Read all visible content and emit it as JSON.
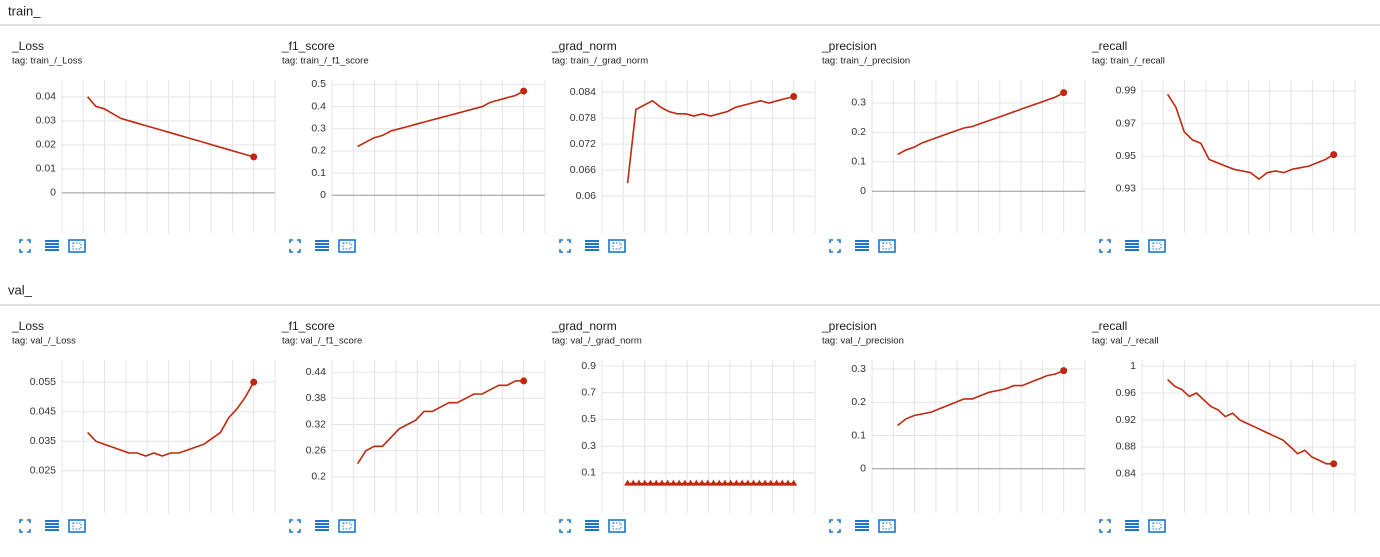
{
  "sections": [
    "train_",
    "val_"
  ],
  "chart_data": [
    {
      "type": "line",
      "title": "_Loss",
      "subtitle": "tag: train_/_Loss",
      "color": "#c0280f",
      "grid": true,
      "ylim": [
        -0.0167,
        0.047
      ],
      "yticks": [
        0,
        0.01,
        0.02,
        0.03,
        0.04
      ],
      "values": [
        0.04,
        0.036,
        0.035,
        0.033,
        0.031,
        0.03,
        0.029,
        0.028,
        0.027,
        0.026,
        0.025,
        0.024,
        0.023,
        0.022,
        0.021,
        0.02,
        0.019,
        0.018,
        0.017,
        0.016,
        0.015
      ]
    },
    {
      "type": "line",
      "title": "_f1_score",
      "subtitle": "tag: train_/_f1_score",
      "color": "#c0280f",
      "grid": true,
      "ylim": [
        -0.17,
        0.52
      ],
      "yticks": [
        0,
        0.1,
        0.2,
        0.3,
        0.4,
        0.5
      ],
      "values": [
        0.22,
        0.24,
        0.26,
        0.27,
        0.29,
        0.3,
        0.31,
        0.32,
        0.33,
        0.34,
        0.35,
        0.36,
        0.37,
        0.38,
        0.39,
        0.4,
        0.42,
        0.43,
        0.44,
        0.45,
        0.47
      ]
    },
    {
      "type": "line",
      "title": "_grad_norm",
      "subtitle": "tag: train_/_grad_norm",
      "color": "#c0280f",
      "grid": true,
      "ylim": [
        0.0515,
        0.0868
      ],
      "yticks": [
        0.06,
        0.066,
        0.072,
        0.078,
        0.084
      ],
      "values": [
        0.063,
        0.08,
        0.081,
        0.082,
        0.0805,
        0.0795,
        0.079,
        0.079,
        0.0785,
        0.079,
        0.0785,
        0.079,
        0.0795,
        0.0805,
        0.081,
        0.0815,
        0.082,
        0.0815,
        0.082,
        0.0825,
        0.083
      ]
    },
    {
      "type": "line",
      "title": "_precision",
      "subtitle": "tag: train_/_precision",
      "color": "#c0280f",
      "grid": true,
      "ylim": [
        -0.142,
        0.378
      ],
      "yticks": [
        0,
        0.1,
        0.2,
        0.3
      ],
      "values": [
        0.125,
        0.14,
        0.15,
        0.165,
        0.175,
        0.185,
        0.195,
        0.205,
        0.215,
        0.22,
        0.23,
        0.24,
        0.25,
        0.26,
        0.27,
        0.28,
        0.29,
        0.3,
        0.31,
        0.32,
        0.335
      ]
    },
    {
      "type": "line",
      "title": "_recall",
      "subtitle": "tag: train_/_recall",
      "color": "#c0280f",
      "grid": true,
      "ylim": [
        0.903,
        0.9967
      ],
      "yticks": [
        0.93,
        0.95,
        0.97,
        0.99
      ],
      "values": [
        0.988,
        0.98,
        0.965,
        0.96,
        0.958,
        0.948,
        0.946,
        0.944,
        0.942,
        0.941,
        0.94,
        0.936,
        0.94,
        0.941,
        0.94,
        0.942,
        0.943,
        0.944,
        0.946,
        0.948,
        0.951
      ]
    },
    {
      "type": "line",
      "title": "_Loss",
      "subtitle": "tag: val_/_Loss",
      "color": "#c0280f",
      "grid": true,
      "ylim": [
        0.0107,
        0.0625
      ],
      "yticks": [
        0.025,
        0.035,
        0.045,
        0.055
      ],
      "values": [
        0.038,
        0.035,
        0.034,
        0.033,
        0.032,
        0.031,
        0.031,
        0.03,
        0.031,
        0.03,
        0.031,
        0.031,
        0.032,
        0.033,
        0.034,
        0.036,
        0.038,
        0.043,
        0.046,
        0.05,
        0.055
      ]
    },
    {
      "type": "line",
      "title": "_f1_score",
      "subtitle": "tag: val_/_f1_score",
      "color": "#c0280f",
      "grid": true,
      "ylim": [
        0.117,
        0.468
      ],
      "yticks": [
        0.2,
        0.26,
        0.32,
        0.38,
        0.44
      ],
      "values": [
        0.23,
        0.26,
        0.27,
        0.27,
        0.29,
        0.31,
        0.32,
        0.33,
        0.35,
        0.35,
        0.36,
        0.37,
        0.37,
        0.38,
        0.39,
        0.39,
        0.4,
        0.41,
        0.41,
        0.42,
        0.42
      ]
    },
    {
      "type": "line",
      "title": "_grad_norm",
      "subtitle": "tag: val_/_grad_norm",
      "color": "#c0280f",
      "grid": true,
      "marker": "triangle",
      "ylim": [
        -0.2,
        0.945
      ],
      "yticks": [
        0.1,
        0.3,
        0.5,
        0.7,
        0.9
      ],
      "values": [
        0.02,
        0.02,
        0.02,
        0.02,
        0.02,
        0.02,
        0.02,
        0.02,
        0.02,
        0.02,
        0.02,
        0.02,
        0.02,
        0.02,
        0.02,
        0.02,
        0.02,
        0.02,
        0.02,
        0.02,
        0.02,
        0.02,
        0.02,
        0.02,
        0.02,
        0.02,
        0.02,
        0.02,
        0.02,
        0.02
      ]
    },
    {
      "type": "line",
      "title": "_precision",
      "subtitle": "tag: val_/_precision",
      "color": "#c0280f",
      "grid": true,
      "ylim": [
        -0.133,
        0.327
      ],
      "yticks": [
        0,
        0.1,
        0.2,
        0.3
      ],
      "values": [
        0.13,
        0.15,
        0.16,
        0.165,
        0.17,
        0.18,
        0.19,
        0.2,
        0.21,
        0.21,
        0.22,
        0.23,
        0.235,
        0.24,
        0.25,
        0.25,
        0.26,
        0.27,
        0.28,
        0.285,
        0.295
      ]
    },
    {
      "type": "line",
      "title": "_recall",
      "subtitle": "tag: val_/_recall",
      "color": "#c0280f",
      "grid": true,
      "ylim": [
        0.782,
        1.009
      ],
      "yticks": [
        0.84,
        0.88,
        0.92,
        0.96,
        1
      ],
      "values": [
        0.98,
        0.97,
        0.965,
        0.955,
        0.96,
        0.95,
        0.94,
        0.935,
        0.925,
        0.93,
        0.92,
        0.915,
        0.91,
        0.905,
        0.9,
        0.895,
        0.89,
        0.88,
        0.87,
        0.875,
        0.865,
        0.86,
        0.855,
        0.855
      ]
    }
  ]
}
